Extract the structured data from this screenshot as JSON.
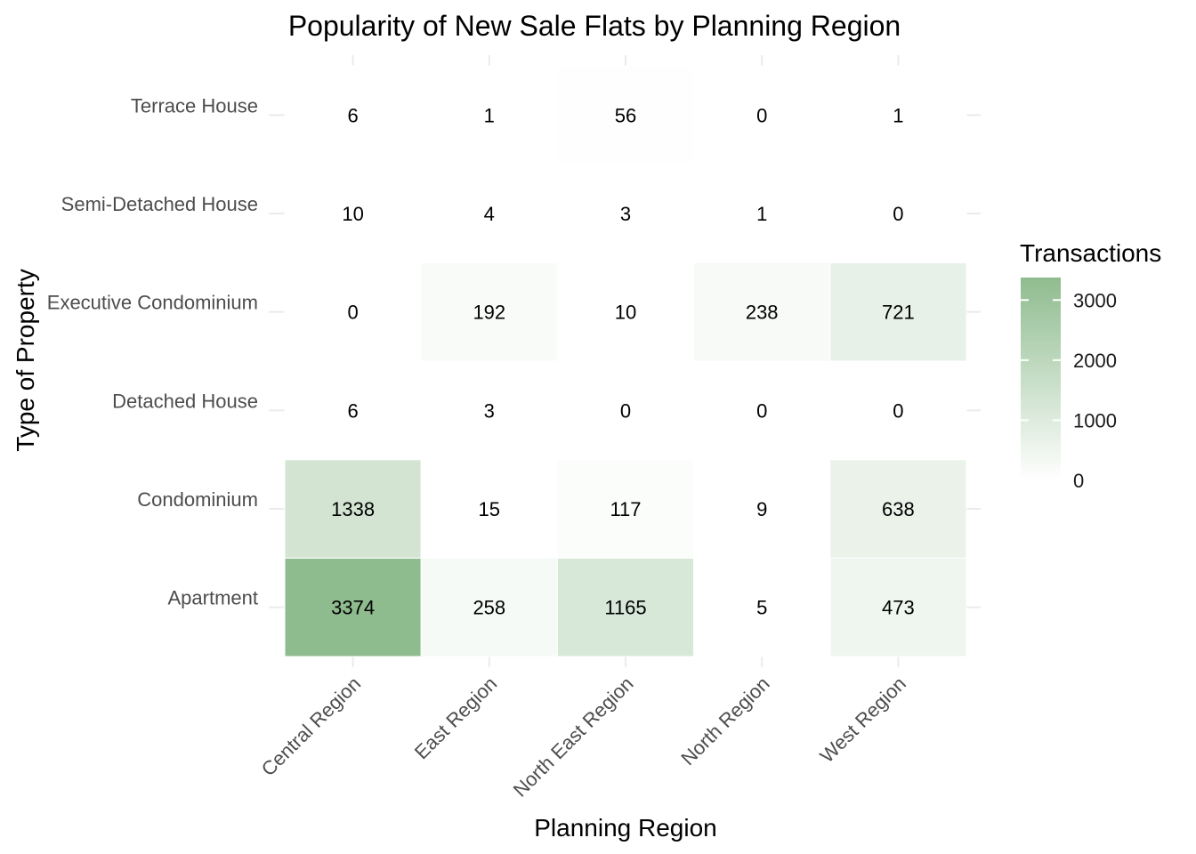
{
  "chart_data": {
    "type": "heatmap",
    "title": "Popularity of New Sale Flats by Planning Region",
    "xlabel": "Planning Region",
    "ylabel": "Type of Property",
    "x_categories": [
      "Central Region",
      "East Region",
      "North East Region",
      "North Region",
      "West Region"
    ],
    "y_categories": [
      "Apartment",
      "Condominium",
      "Detached House",
      "Executive Condominium",
      "Semi-Detached House",
      "Terrace House"
    ],
    "values": [
      [
        3374,
        258,
        1165,
        5,
        473
      ],
      [
        1338,
        15,
        117,
        9,
        638
      ],
      [
        6,
        3,
        0,
        0,
        0
      ],
      [
        0,
        192,
        10,
        238,
        721
      ],
      [
        10,
        4,
        3,
        1,
        0
      ],
      [
        6,
        1,
        56,
        0,
        1
      ]
    ],
    "legend": {
      "title": "Transactions",
      "ticks": [
        0,
        1000,
        2000,
        3000
      ],
      "range": [
        0,
        3374
      ],
      "low_color": "#ffffff",
      "high_color": "#8fbc8f",
      "placement": "right"
    },
    "grid": true
  }
}
